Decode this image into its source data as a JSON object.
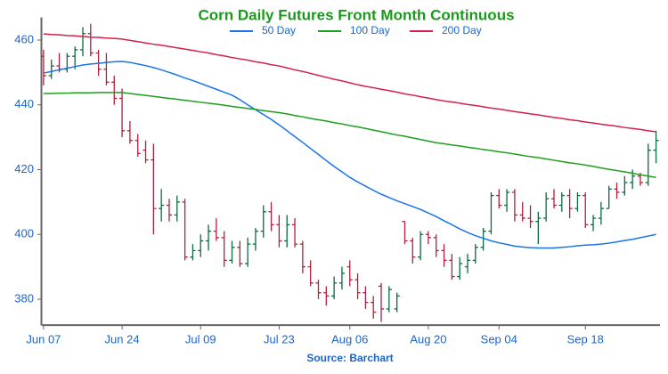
{
  "chart_data": {
    "type": "ohlc",
    "title": "Corn Daily Futures Front Month Continuous",
    "source": "Source: Barchart",
    "categories": [
      "Jun 07",
      null,
      null,
      null,
      null,
      null,
      null,
      null,
      null,
      null,
      "Jun 24",
      null,
      null,
      null,
      null,
      null,
      null,
      null,
      null,
      null,
      "Jul 09",
      null,
      null,
      null,
      null,
      null,
      null,
      null,
      null,
      null,
      "Jul 23",
      null,
      null,
      null,
      null,
      null,
      null,
      null,
      null,
      "Aug 06",
      null,
      null,
      null,
      null,
      null,
      null,
      null,
      null,
      null,
      "Aug 20",
      null,
      null,
      null,
      null,
      null,
      null,
      null,
      null,
      "Sep 04",
      null,
      null,
      null,
      null,
      null,
      null,
      null,
      null,
      null,
      null,
      "Sep 18",
      null,
      null,
      null,
      null,
      null,
      null,
      null,
      null,
      null
    ],
    "ohlc": {
      "up_color": "#0a6b3c",
      "down_color": "#b0203c",
      "open": [
        455,
        449,
        452,
        451,
        455,
        457,
        462,
        456,
        451,
        447,
        442,
        432,
        429,
        426,
        423,
        408,
        409,
        406,
        410,
        393,
        395,
        398,
        401,
        399,
        392,
        396,
        391,
        397,
        401,
        407,
        403,
        398,
        403,
        397,
        390,
        385,
        382,
        381,
        385,
        390,
        386,
        382,
        379,
        384,
        377,
        377,
        404,
        398,
        393,
        400,
        399,
        395,
        392,
        387,
        390,
        392,
        396,
        401,
        412,
        409,
        413,
        406,
        405,
        404,
        405,
        411,
        409,
        412,
        408,
        412,
        403,
        405,
        408,
        414,
        413,
        416,
        418,
        416,
        426
      ],
      "high": [
        457,
        454,
        456,
        456,
        458,
        464,
        465,
        457,
        456,
        449,
        445,
        435,
        431,
        429,
        428,
        414,
        411,
        412,
        411,
        397,
        400,
        403,
        405,
        401,
        398,
        398,
        399,
        402,
        409,
        410,
        406,
        406,
        405,
        398,
        392,
        386,
        384,
        387,
        390,
        392,
        388,
        384,
        381,
        385,
        384,
        382,
        404,
        399,
        401,
        401,
        400,
        397,
        394,
        393,
        394,
        397,
        402,
        413,
        414,
        414,
        414,
        410,
        409,
        407,
        413,
        414,
        413,
        414,
        413,
        413,
        406,
        410,
        415,
        416,
        418,
        420,
        419,
        428,
        432
      ],
      "low": [
        446,
        448,
        450,
        450,
        451,
        455,
        455,
        449,
        446,
        440,
        430,
        428,
        424,
        422,
        400,
        404,
        404,
        404,
        392,
        392,
        393,
        395,
        398,
        390,
        391,
        390,
        390,
        395,
        399,
        401,
        396,
        396,
        396,
        388,
        384,
        380,
        378,
        380,
        383,
        384,
        380,
        377,
        374,
        373,
        376,
        376,
        397,
        391,
        392,
        397,
        393,
        390,
        386,
        386,
        388,
        391,
        395,
        400,
        408,
        407,
        404,
        404,
        402,
        397,
        404,
        408,
        407,
        405,
        407,
        402,
        401,
        403,
        408,
        411,
        412,
        414,
        415,
        415,
        422
      ],
      "close": [
        449,
        452,
        451,
        455,
        457,
        462,
        456,
        451,
        447,
        442,
        432,
        429,
        425,
        423,
        408,
        409,
        406,
        410,
        393,
        395,
        398,
        401,
        399,
        392,
        396,
        391,
        397,
        401,
        407,
        403,
        398,
        403,
        397,
        390,
        385,
        382,
        381,
        385,
        388,
        386,
        382,
        379,
        376,
        377,
        383,
        381,
        398,
        393,
        400,
        399,
        395,
        392,
        387,
        391,
        392,
        396,
        401,
        412,
        409,
        413,
        406,
        405,
        404,
        405,
        411,
        409,
        412,
        408,
        412,
        403,
        405,
        408,
        414,
        413,
        416,
        418,
        416,
        426,
        429
      ]
    },
    "series": [
      {
        "name": "50 Day",
        "color": "#1a73e8",
        "values": [
          449.8,
          450.3,
          450.8,
          451.3,
          451.8,
          452.3,
          452.6,
          452.8,
          453.1,
          453.3,
          453.4,
          453.1,
          452.6,
          452.1,
          451.5,
          450.8,
          450.0,
          449.2,
          448.3,
          447.5,
          446.6,
          445.7,
          444.8,
          443.9,
          443.0,
          441.6,
          440.0,
          438.5,
          437.0,
          435.5,
          433.8,
          432.0,
          430.2,
          428.4,
          426.5,
          424.7,
          422.8,
          421.0,
          419.3,
          417.6,
          416.2,
          414.9,
          413.6,
          412.4,
          411.4,
          410.4,
          409.5,
          408.6,
          407.7,
          406.6,
          405.5,
          404.2,
          403.0,
          401.7,
          400.6,
          399.6,
          398.8,
          398.0,
          397.4,
          396.9,
          396.4,
          396.1,
          395.9,
          395.8,
          395.8,
          395.8,
          396.0,
          396.2,
          396.5,
          396.7,
          396.8,
          397.0,
          397.3,
          397.7,
          398.1,
          398.5,
          399.0,
          399.5,
          400.0
        ]
      },
      {
        "name": "100 Day",
        "color": "#1e9e1e",
        "values": [
          443.5,
          443.5,
          443.6,
          443.6,
          443.7,
          443.7,
          443.7,
          443.8,
          443.8,
          443.8,
          443.8,
          443.5,
          443.2,
          442.9,
          442.6,
          442.3,
          442.0,
          441.7,
          441.4,
          441.1,
          440.8,
          440.5,
          440.2,
          439.9,
          439.5,
          439.2,
          438.9,
          438.6,
          438.2,
          437.9,
          437.6,
          437.2,
          436.7,
          436.3,
          435.8,
          435.4,
          435.0,
          434.5,
          434.1,
          433.6,
          433.2,
          432.7,
          432.2,
          431.7,
          431.2,
          430.7,
          430.3,
          429.8,
          429.3,
          428.8,
          428.3,
          428.0,
          427.6,
          427.3,
          426.9,
          426.6,
          426.2,
          425.9,
          425.5,
          425.2,
          424.8,
          424.4,
          424.0,
          423.7,
          423.3,
          422.9,
          422.5,
          422.1,
          421.8,
          421.4,
          421.0,
          420.5,
          420.1,
          419.7,
          419.3,
          418.9,
          418.4,
          418.0,
          417.6
        ]
      },
      {
        "name": "200 Day",
        "color": "#d4204a",
        "values": [
          461.9,
          461.7,
          461.6,
          461.4,
          461.3,
          461.1,
          460.9,
          460.8,
          460.6,
          460.5,
          460.3,
          459.9,
          459.5,
          459.1,
          458.7,
          458.4,
          458.0,
          457.6,
          457.2,
          456.8,
          456.4,
          456.0,
          455.5,
          455.1,
          454.6,
          454.2,
          453.8,
          453.3,
          452.9,
          452.4,
          452.0,
          451.4,
          450.8,
          450.3,
          449.7,
          449.1,
          448.5,
          447.9,
          447.4,
          446.8,
          446.2,
          445.7,
          445.3,
          444.8,
          444.4,
          443.9,
          443.4,
          443.0,
          442.5,
          442.1,
          441.6,
          441.2,
          440.9,
          440.5,
          440.1,
          439.8,
          439.4,
          439.0,
          438.7,
          438.3,
          437.9,
          437.6,
          437.2,
          436.9,
          436.5,
          436.1,
          435.8,
          435.4,
          435.1,
          434.7,
          434.4,
          434.0,
          433.7,
          433.4,
          433.0,
          432.7,
          432.4,
          432.0,
          431.7
        ]
      }
    ],
    "ylim": [
      372,
      467
    ],
    "yticks": [
      380,
      400,
      420,
      440,
      460
    ],
    "grid": false,
    "legend": "top"
  }
}
